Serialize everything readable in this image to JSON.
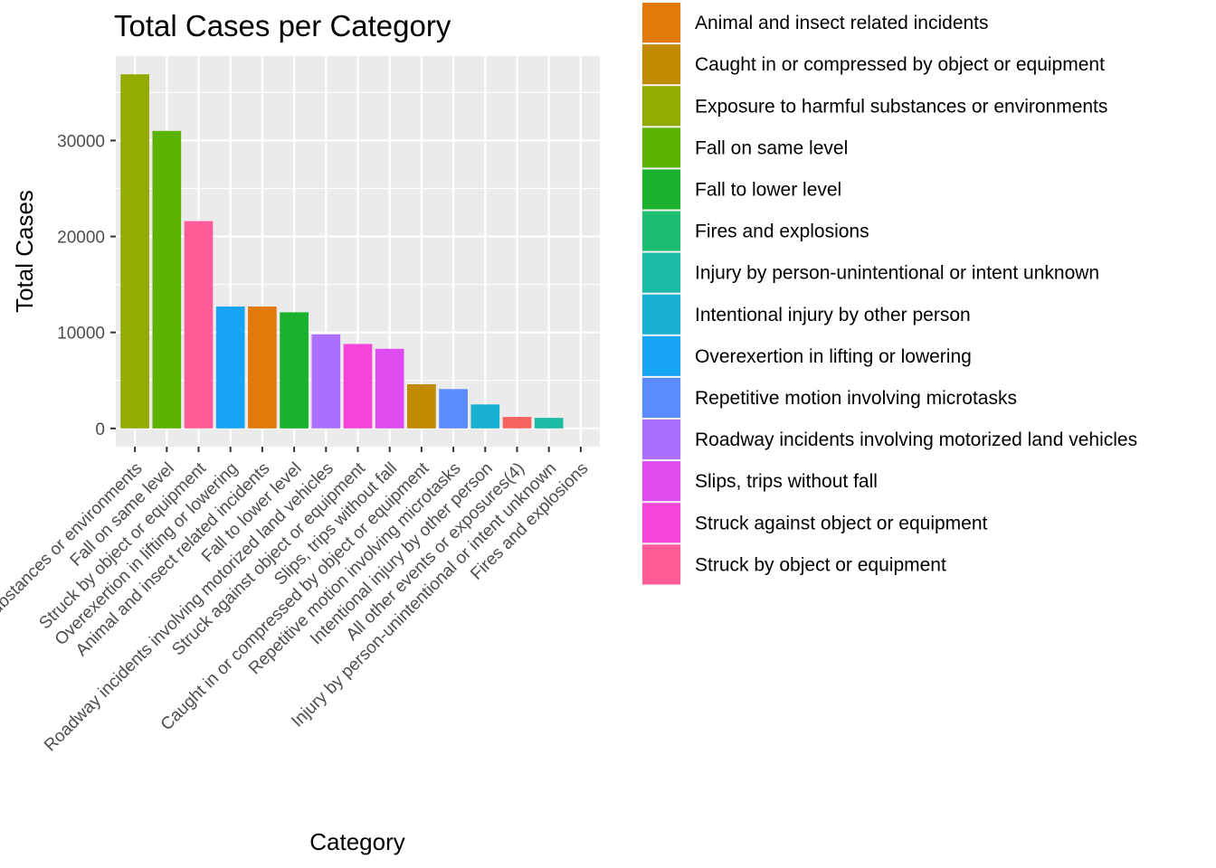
{
  "chart_data": {
    "type": "bar",
    "title": "Total Cases per Category",
    "xlabel": "Category",
    "ylabel": "Total Cases",
    "ylim": [
      -1900,
      38800
    ],
    "yticks": [
      0,
      10000,
      20000,
      30000
    ],
    "grid": true,
    "legend_placement": "right",
    "categories": [
      "Exposure to harmful substances or environments",
      "Fall on same level",
      "Struck by object or equipment",
      "Overexertion in lifting or lowering",
      "Animal and insect related incidents",
      "Fall to lower level",
      "Roadway incidents involving motorized land vehicles",
      "Struck against object or equipment",
      "Slips, trips without fall",
      "Caught in or compressed by object or equipment",
      "Repetitive motion involving microtasks",
      "Intentional injury by other person",
      "All other events or exposures(4)",
      "Injury by person-unintentional or intent unknown",
      "Fires and explosions"
    ],
    "values": [
      36900,
      31000,
      21600,
      12700,
      12700,
      12100,
      9800,
      8800,
      8300,
      4600,
      4100,
      2500,
      1200,
      1100,
      0
    ],
    "bar_colors": [
      "#93AA00",
      "#5BB300",
      "#FF5B98",
      "#18A4F5",
      "#E17A0A",
      "#1AB22C",
      "#AC6FFF",
      "#F545D8",
      "#DE4CF0",
      "#C08B00",
      "#5A8BFF",
      "#19B1D2",
      "#F7635F",
      "#1BBBA4",
      "#1CBE74"
    ],
    "legend": [
      {
        "label": "Animal and insect related incidents",
        "color": "#E17A0A"
      },
      {
        "label": "Caught in or compressed by object or equipment",
        "color": "#C08B00"
      },
      {
        "label": "Exposure to harmful substances or environments",
        "color": "#93AA00"
      },
      {
        "label": "Fall on same level",
        "color": "#5BB300"
      },
      {
        "label": "Fall to lower level",
        "color": "#1AB22C"
      },
      {
        "label": "Fires and explosions",
        "color": "#1CBE74"
      },
      {
        "label": "Injury by person-unintentional or intent unknown",
        "color": "#1BBBA4"
      },
      {
        "label": "Intentional injury by other person",
        "color": "#19B1D2"
      },
      {
        "label": "Overexertion in lifting or lowering",
        "color": "#18A4F5"
      },
      {
        "label": "Repetitive motion involving microtasks",
        "color": "#5A8BFF"
      },
      {
        "label": "Roadway incidents involving motorized land vehicles",
        "color": "#AC6FFF"
      },
      {
        "label": "Slips, trips without fall",
        "color": "#DE4CF0"
      },
      {
        "label": "Struck against object or equipment",
        "color": "#F545D8"
      },
      {
        "label": "Struck by object or equipment",
        "color": "#FF5B98"
      }
    ]
  }
}
